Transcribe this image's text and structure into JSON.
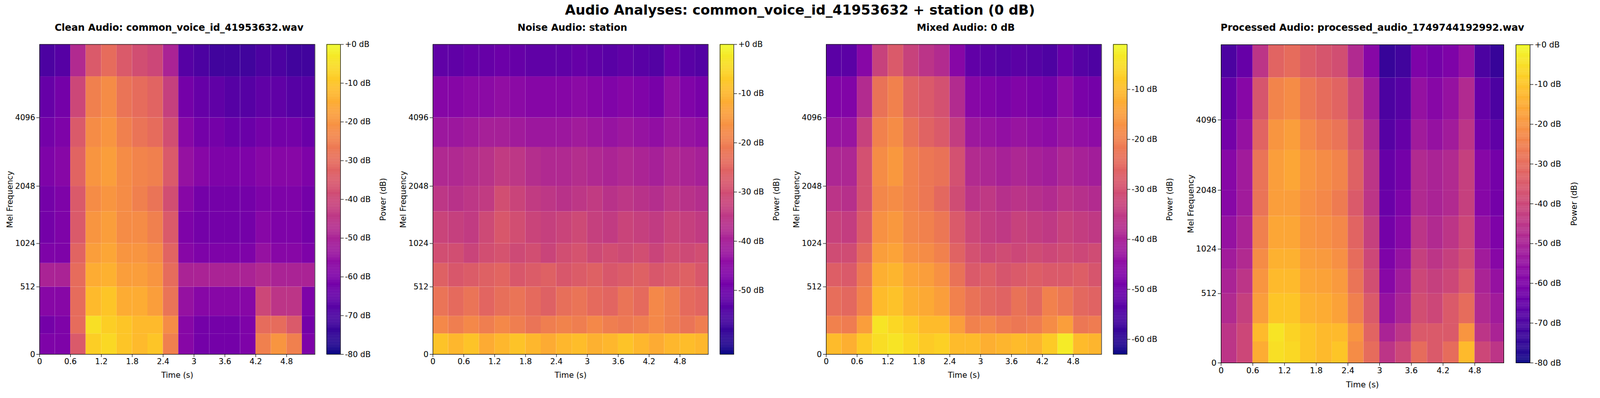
{
  "title": "Audio Analyses: common_voice_id_41953632 + station (0 dB)",
  "chart_data": [
    {
      "type": "heatmap",
      "title": "Clean Audio: common_voice_id_41953632.wav",
      "x_label": "Time (s)",
      "y_label": "Mel Frequency",
      "color": "plasma",
      "log": "y",
      "xlim": [
        0,
        5.35
      ],
      "xticks": [
        0,
        0.6,
        1.2,
        1.8,
        2.4,
        3,
        3.6,
        4.2,
        4.8
      ],
      "ylim": [
        0,
        8000
      ],
      "yticks": [
        0,
        512,
        1024,
        2048,
        4096
      ],
      "time_bins": [
        0,
        0.3,
        0.6,
        0.9,
        1.2,
        1.5,
        1.8,
        2.1,
        2.4,
        2.7,
        3.0,
        3.3,
        3.6,
        3.9,
        4.2,
        4.5,
        4.8,
        5.1,
        5.35
      ],
      "freq_bins": [
        0,
        128,
        256,
        512,
        768,
        1024,
        1536,
        2048,
        3072,
        4096,
        6000,
        8000
      ],
      "cells": [
        [
          -60,
          -60,
          -35,
          -8,
          -6,
          -10,
          -12,
          -10,
          -25,
          -58,
          -62,
          -62,
          -62,
          -60,
          -25,
          -20,
          -25,
          -60
        ],
        [
          -62,
          -60,
          -30,
          -5,
          -8,
          -10,
          -12,
          -12,
          -22,
          -58,
          -62,
          -62,
          -62,
          -60,
          -30,
          -30,
          -35,
          -62
        ],
        [
          -58,
          -58,
          -30,
          -12,
          -10,
          -15,
          -15,
          -18,
          -28,
          -55,
          -58,
          -58,
          -58,
          -58,
          -40,
          -45,
          -45,
          -60
        ],
        [
          -50,
          -50,
          -30,
          -15,
          -14,
          -18,
          -18,
          -20,
          -30,
          -50,
          -50,
          -50,
          -50,
          -50,
          -48,
          -50,
          -50,
          -50
        ],
        [
          -60,
          -60,
          -32,
          -18,
          -16,
          -20,
          -20,
          -22,
          -32,
          -58,
          -60,
          -60,
          -60,
          -60,
          -55,
          -58,
          -58,
          -60
        ],
        [
          -62,
          -60,
          -35,
          -20,
          -18,
          -22,
          -22,
          -25,
          -35,
          -60,
          -62,
          -62,
          -62,
          -62,
          -58,
          -60,
          -60,
          -62
        ],
        [
          -62,
          -60,
          -35,
          -22,
          -20,
          -22,
          -25,
          -28,
          -38,
          -58,
          -62,
          -62,
          -62,
          -62,
          -60,
          -60,
          -60,
          -62
        ],
        [
          -60,
          -58,
          -32,
          -20,
          -18,
          -22,
          -24,
          -25,
          -35,
          -55,
          -58,
          -60,
          -60,
          -60,
          -58,
          -58,
          -58,
          -60
        ],
        [
          -62,
          -60,
          -35,
          -22,
          -20,
          -25,
          -28,
          -30,
          -38,
          -58,
          -62,
          -62,
          -64,
          -64,
          -62,
          -62,
          -62,
          -64
        ],
        [
          -65,
          -62,
          -40,
          -25,
          -22,
          -28,
          -30,
          -32,
          -42,
          -62,
          -65,
          -66,
          -68,
          -68,
          -66,
          -66,
          -68,
          -68
        ],
        [
          -70,
          -68,
          -48,
          -35,
          -30,
          -35,
          -38,
          -40,
          -50,
          -68,
          -70,
          -72,
          -72,
          -72,
          -70,
          -70,
          -72,
          -72
        ]
      ],
      "colorbar": {
        "label": "Power (dB)",
        "range": [
          -80,
          0
        ],
        "ticks": [
          {
            "value": 0,
            "label": "+0 dB"
          },
          {
            "value": -10,
            "label": "-10 dB"
          },
          {
            "value": -20,
            "label": "-20 dB"
          },
          {
            "value": -30,
            "label": "-30 dB"
          },
          {
            "value": -40,
            "label": "-40 dB"
          },
          {
            "value": -50,
            "label": "-50 dB"
          },
          {
            "value": -60,
            "label": "-60 dB"
          },
          {
            "value": -70,
            "label": "-70 dB"
          },
          {
            "value": -80,
            "label": "-80 dB"
          }
        ]
      }
    },
    {
      "type": "heatmap",
      "title": "Noise Audio: station",
      "x_label": "Time (s)",
      "y_label": "Mel Frequency",
      "color": "plasma",
      "log": "y",
      "xlim": [
        0,
        5.35
      ],
      "xticks": [
        0,
        0.6,
        1.2,
        1.8,
        2.4,
        3,
        3.6,
        4.2,
        4.8
      ],
      "ylim": [
        0,
        8000
      ],
      "yticks": [
        0,
        512,
        1024,
        2048,
        4096
      ],
      "time_bins": [
        0,
        0.3,
        0.6,
        0.9,
        1.2,
        1.5,
        1.8,
        2.1,
        2.4,
        2.7,
        3.0,
        3.3,
        3.6,
        3.9,
        4.2,
        4.5,
        4.8,
        5.1,
        5.35
      ],
      "freq_bins": [
        0,
        128,
        256,
        512,
        768,
        1024,
        1536,
        2048,
        3072,
        4096,
        6000,
        8000
      ],
      "cells": [
        [
          -8,
          -10,
          -8,
          -12,
          -10,
          -8,
          -10,
          -12,
          -10,
          -9,
          -11,
          -10,
          -8,
          -10,
          -12,
          -10,
          -9,
          -10
        ],
        [
          -18,
          -20,
          -18,
          -20,
          -18,
          -20,
          -22,
          -20,
          -19,
          -20,
          -18,
          -20,
          -21,
          -20,
          -18,
          -20,
          -22,
          -20
        ],
        [
          -22,
          -24,
          -22,
          -25,
          -23,
          -22,
          -24,
          -26,
          -23,
          -22,
          -24,
          -25,
          -22,
          -24,
          -18,
          -20,
          -24,
          -25
        ],
        [
          -26,
          -28,
          -27,
          -26,
          -25,
          -28,
          -27,
          -26,
          -28,
          -27,
          -26,
          -28,
          -27,
          -26,
          -28,
          -27,
          -26,
          -28
        ],
        [
          -30,
          -30,
          -32,
          -30,
          -29,
          -31,
          -30,
          -32,
          -30,
          -29,
          -31,
          -30,
          -31,
          -30,
          -32,
          -30,
          -31,
          -30
        ],
        [
          -32,
          -33,
          -34,
          -31,
          -28,
          -30,
          -32,
          -33,
          -32,
          -31,
          -33,
          -34,
          -32,
          -33,
          -34,
          -32,
          -33,
          -34
        ],
        [
          -35,
          -36,
          -35,
          -34,
          -30,
          -32,
          -34,
          -35,
          -36,
          -35,
          -34,
          -36,
          -35,
          -36,
          -37,
          -35,
          -36,
          -37
        ],
        [
          -38,
          -38,
          -37,
          -36,
          -34,
          -35,
          -37,
          -38,
          -38,
          -37,
          -38,
          -39,
          -38,
          -39,
          -40,
          -38,
          -39,
          -40
        ],
        [
          -42,
          -42,
          -41,
          -40,
          -40,
          -41,
          -42,
          -42,
          -42,
          -41,
          -42,
          -43,
          -42,
          -43,
          -44,
          -42,
          -43,
          -44
        ],
        [
          -46,
          -46,
          -45,
          -45,
          -44,
          -45,
          -46,
          -46,
          -46,
          -45,
          -46,
          -47,
          -46,
          -47,
          -48,
          -44,
          -47,
          -48
        ],
        [
          -52,
          -52,
          -51,
          -51,
          -50,
          -51,
          -52,
          -52,
          -52,
          -51,
          -52,
          -53,
          -52,
          -53,
          -54,
          -50,
          -53,
          -54
        ]
      ],
      "colorbar": {
        "label": "Power (dB)",
        "range": [
          -63,
          0
        ],
        "ticks": [
          {
            "value": 0,
            "label": "+0 dB"
          },
          {
            "value": -10,
            "label": "-10 dB"
          },
          {
            "value": -20,
            "label": "-20 dB"
          },
          {
            "value": -30,
            "label": "-30 dB"
          },
          {
            "value": -40,
            "label": "-40 dB"
          },
          {
            "value": -50,
            "label": "-50 dB"
          }
        ]
      }
    },
    {
      "type": "heatmap",
      "title": "Mixed Audio: 0 dB",
      "x_label": "Time (s)",
      "y_label": "Mel Frequency",
      "color": "plasma",
      "log": "y",
      "xlim": [
        0,
        5.35
      ],
      "xticks": [
        0,
        0.6,
        1.2,
        1.8,
        2.4,
        3,
        3.6,
        4.2,
        4.8
      ],
      "ylim": [
        0,
        8000
      ],
      "yticks": [
        0,
        512,
        1024,
        2048,
        4096
      ],
      "time_bins": [
        0,
        0.3,
        0.6,
        0.9,
        1.2,
        1.5,
        1.8,
        2.1,
        2.4,
        2.7,
        3.0,
        3.3,
        3.6,
        3.9,
        4.2,
        4.5,
        4.8,
        5.1,
        5.35
      ],
      "freq_bins": [
        0,
        128,
        256,
        512,
        768,
        1024,
        1536,
        2048,
        3072,
        4096,
        6000,
        8000
      ],
      "cells": [
        [
          -10,
          -12,
          -8,
          -5,
          -4,
          -6,
          -8,
          -7,
          -10,
          -10,
          -12,
          -11,
          -10,
          -11,
          -8,
          -3,
          -10,
          -11
        ],
        [
          -20,
          -21,
          -15,
          -4,
          -6,
          -8,
          -10,
          -10,
          -15,
          -20,
          -19,
          -21,
          -22,
          -21,
          -18,
          -15,
          -22,
          -21
        ],
        [
          -24,
          -25,
          -20,
          -10,
          -9,
          -12,
          -13,
          -15,
          -20,
          -23,
          -25,
          -26,
          -23,
          -25,
          -20,
          -22,
          -25,
          -26
        ],
        [
          -27,
          -28,
          -22,
          -12,
          -11,
          -14,
          -15,
          -17,
          -23,
          -28,
          -27,
          -29,
          -28,
          -27,
          -28,
          -28,
          -27,
          -29
        ],
        [
          -31,
          -31,
          -25,
          -15,
          -14,
          -17,
          -18,
          -20,
          -26,
          -30,
          -32,
          -31,
          -32,
          -31,
          -32,
          -31,
          -32,
          -31
        ],
        [
          -33,
          -34,
          -28,
          -17,
          -16,
          -19,
          -20,
          -22,
          -28,
          -32,
          -34,
          -35,
          -33,
          -34,
          -35,
          -33,
          -34,
          -35
        ],
        [
          -36,
          -37,
          -30,
          -19,
          -18,
          -20,
          -22,
          -25,
          -31,
          -36,
          -35,
          -37,
          -36,
          -37,
          -38,
          -36,
          -37,
          -38
        ],
        [
          -39,
          -39,
          -30,
          -18,
          -16,
          -20,
          -22,
          -23,
          -30,
          -38,
          -39,
          -40,
          -39,
          -40,
          -41,
          -39,
          -40,
          -41
        ],
        [
          -43,
          -43,
          -33,
          -20,
          -18,
          -23,
          -26,
          -28,
          -34,
          -42,
          -43,
          -44,
          -43,
          -44,
          -45,
          -43,
          -44,
          -45
        ],
        [
          -47,
          -47,
          -38,
          -23,
          -20,
          -26,
          -28,
          -30,
          -38,
          -46,
          -47,
          -48,
          -47,
          -48,
          -49,
          -45,
          -48,
          -49
        ],
        [
          -53,
          -53,
          -46,
          -33,
          -28,
          -33,
          -36,
          -38,
          -46,
          -52,
          -53,
          -54,
          -53,
          -54,
          -55,
          -51,
          -54,
          -55
        ]
      ],
      "colorbar": {
        "label": "Power (dB)",
        "range": [
          -63,
          -1
        ],
        "ticks": [
          {
            "value": -10,
            "label": "-10 dB"
          },
          {
            "value": -20,
            "label": "-20 dB"
          },
          {
            "value": -30,
            "label": "-30 dB"
          },
          {
            "value": -40,
            "label": "-40 dB"
          },
          {
            "value": -50,
            "label": "-50 dB"
          },
          {
            "value": -60,
            "label": "-60 dB"
          }
        ]
      }
    },
    {
      "type": "heatmap",
      "title": "Processed Audio: processed_audio_1749744192992.wav",
      "x_label": "Time (s)",
      "y_label": "Mel Frequency",
      "color": "plasma",
      "log": "y",
      "xlim": [
        0,
        5.35
      ],
      "xticks": [
        0,
        0.6,
        1.2,
        1.8,
        2.4,
        3,
        3.6,
        4.2,
        4.8
      ],
      "ylim": [
        0,
        8000
      ],
      "yticks": [
        0,
        512,
        1024,
        2048,
        4096
      ],
      "time_bins": [
        0,
        0.3,
        0.6,
        0.9,
        1.2,
        1.5,
        1.8,
        2.1,
        2.4,
        2.7,
        3.0,
        3.3,
        3.6,
        3.9,
        4.2,
        4.5,
        4.8,
        5.1,
        5.35
      ],
      "freq_bins": [
        0,
        128,
        256,
        512,
        768,
        1024,
        1536,
        2048,
        3072,
        4096,
        6000,
        8000
      ],
      "cells": [
        [
          -45,
          -40,
          -15,
          -5,
          -6,
          -10,
          -12,
          -10,
          -22,
          -30,
          -45,
          -40,
          -30,
          -35,
          -30,
          -12,
          -40,
          -45
        ],
        [
          -45,
          -40,
          -12,
          -4,
          -7,
          -10,
          -12,
          -12,
          -20,
          -32,
          -50,
          -45,
          -35,
          -35,
          -35,
          -20,
          -45,
          -50
        ],
        [
          -48,
          -42,
          -18,
          -10,
          -10,
          -14,
          -15,
          -17,
          -25,
          -35,
          -55,
          -50,
          -38,
          -40,
          -35,
          -30,
          -48,
          -52
        ],
        [
          -50,
          -45,
          -20,
          -12,
          -12,
          -16,
          -17,
          -19,
          -28,
          -38,
          -58,
          -52,
          -40,
          -42,
          -40,
          -35,
          -50,
          -55
        ],
        [
          -52,
          -48,
          -22,
          -14,
          -14,
          -18,
          -19,
          -21,
          -30,
          -40,
          -60,
          -55,
          -42,
          -45,
          -42,
          -38,
          -52,
          -58
        ],
        [
          -55,
          -50,
          -25,
          -16,
          -16,
          -20,
          -21,
          -23,
          -32,
          -42,
          -62,
          -58,
          -45,
          -48,
          -45,
          -40,
          -55,
          -60
        ],
        [
          -58,
          -52,
          -28,
          -18,
          -18,
          -21,
          -23,
          -26,
          -35,
          -45,
          -64,
          -60,
          -48,
          -50,
          -48,
          -42,
          -58,
          -62
        ],
        [
          -58,
          -52,
          -28,
          -18,
          -16,
          -20,
          -22,
          -24,
          -33,
          -45,
          -65,
          -62,
          -48,
          -50,
          -48,
          -42,
          -58,
          -62
        ],
        [
          -62,
          -55,
          -32,
          -20,
          -18,
          -23,
          -26,
          -28,
          -36,
          -48,
          -68,
          -65,
          -52,
          -55,
          -52,
          -45,
          -62,
          -66
        ],
        [
          -65,
          -58,
          -36,
          -24,
          -22,
          -27,
          -30,
          -32,
          -40,
          -52,
          -70,
          -68,
          -55,
          -58,
          -55,
          -48,
          -65,
          -70
        ],
        [
          -70,
          -65,
          -45,
          -32,
          -30,
          -34,
          -36,
          -38,
          -48,
          -58,
          -74,
          -72,
          -60,
          -62,
          -60,
          -55,
          -70,
          -74
        ]
      ],
      "colorbar": {
        "label": "Power (dB)",
        "range": [
          -80,
          0
        ],
        "ticks": [
          {
            "value": 0,
            "label": "+0 dB"
          },
          {
            "value": -10,
            "label": "-10 dB"
          },
          {
            "value": -20,
            "label": "-20 dB"
          },
          {
            "value": -30,
            "label": "-30 dB"
          },
          {
            "value": -40,
            "label": "-40 dB"
          },
          {
            "value": -50,
            "label": "-50 dB"
          },
          {
            "value": -60,
            "label": "-60 dB"
          },
          {
            "value": -70,
            "label": "-70 dB"
          },
          {
            "value": -80,
            "label": "-80 dB"
          }
        ]
      }
    }
  ]
}
